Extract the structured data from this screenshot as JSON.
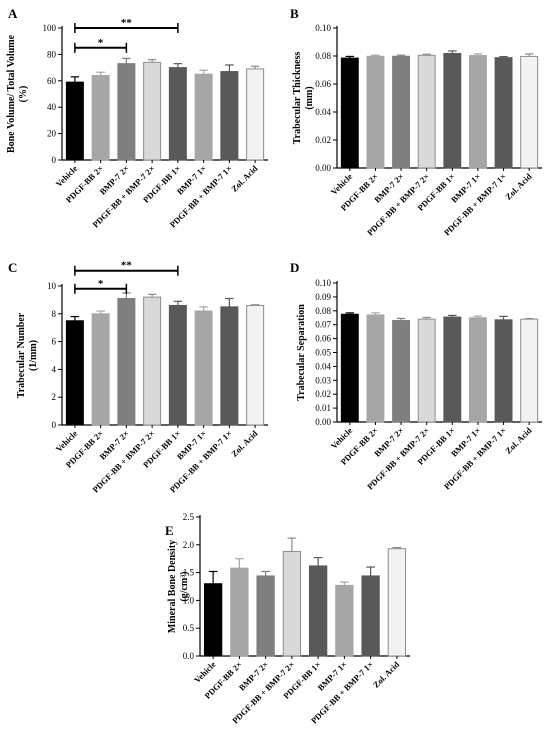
{
  "chart_data": [
    {
      "type": "bar",
      "panel": "A",
      "ylabel": "Bone Volume/ Total Volume (%)",
      "ylim": [
        0,
        100
      ],
      "yticks": [
        0,
        20,
        40,
        60,
        80,
        100
      ],
      "categories": [
        "Vehicle",
        "PDGF-BB 2×",
        "BMP-7 2×",
        "PDGF-BB + BMP-7 2×",
        "PDGF-BB 1×",
        "BMP-7 1×",
        "PDGF-BB + BMP-7 1×",
        "Zol. Acid"
      ],
      "values": [
        59,
        64,
        73,
        74,
        70,
        65,
        67,
        69
      ],
      "errors": [
        4,
        2.5,
        4,
        2,
        3,
        3,
        5,
        2
      ],
      "colors": [
        "#000000",
        "#a6a6a6",
        "#7f7f7f",
        "#d9d9d9",
        "#595959",
        "#a6a6a6",
        "#595959",
        "#f2f2f2"
      ],
      "significance": [
        {
          "from": 0,
          "to": 2,
          "label": "*",
          "y": 85
        },
        {
          "from": 0,
          "to": 4,
          "label": "**",
          "y": 100
        }
      ]
    },
    {
      "type": "bar",
      "panel": "B",
      "ylabel": "Trabecular Thickness (mm)",
      "ylim": [
        0,
        0.1
      ],
      "yticks": [
        "0.00",
        "0.02",
        "0.04",
        "0.06",
        "0.08",
        "0.10"
      ],
      "categories": [
        "Vehicle",
        "PDGF-BB 2×",
        "BMP-7 2×",
        "PDGF-BB + BMP-7 2×",
        "PDGF-BB 1×",
        "BMP-7 1×",
        "PDGF-BB + BMP-7 1×",
        "Zol. Acid"
      ],
      "values": [
        0.0785,
        0.0798,
        0.0798,
        0.0805,
        0.0818,
        0.0803,
        0.0788,
        0.0797
      ],
      "errors": [
        0.0012,
        0.0008,
        0.0008,
        0.0008,
        0.0018,
        0.0012,
        0.0008,
        0.0018
      ],
      "colors": [
        "#000000",
        "#a6a6a6",
        "#7f7f7f",
        "#d9d9d9",
        "#595959",
        "#a6a6a6",
        "#595959",
        "#f2f2f2"
      ],
      "significance": []
    },
    {
      "type": "bar",
      "panel": "C",
      "ylabel": "Trabecular Number (1/mm)",
      "ylim": [
        0,
        10
      ],
      "yticks": [
        0,
        2,
        4,
        6,
        8,
        10
      ],
      "categories": [
        "Vehicle",
        "PDGF-BB 2×",
        "BMP-7 2×",
        "PDGF-BB + BMP-7 2×",
        "PDGF-BB 1×",
        "BMP-7 1×",
        "PDGF-BB + BMP-7 1×",
        "Zol. Acid"
      ],
      "values": [
        7.5,
        8.0,
        9.1,
        9.2,
        8.6,
        8.2,
        8.5,
        8.6
      ],
      "errors": [
        0.3,
        0.2,
        0.4,
        0.2,
        0.3,
        0.3,
        0.6,
        0.05
      ],
      "colors": [
        "#000000",
        "#a6a6a6",
        "#7f7f7f",
        "#d9d9d9",
        "#595959",
        "#a6a6a6",
        "#595959",
        "#f2f2f2"
      ],
      "significance": [
        {
          "from": 0,
          "to": 2,
          "label": "*",
          "y": 9.8
        },
        {
          "from": 0,
          "to": 4,
          "label": "**",
          "y": 11.1
        }
      ]
    },
    {
      "type": "bar",
      "panel": "D",
      "ylabel": "Trabecular Separation",
      "ylim": [
        0,
        0.1
      ],
      "yticks": [
        "0.00",
        "0.01",
        "0.02",
        "0.03",
        "0.04",
        "0.05",
        "0.06",
        "0.07",
        "0.08",
        "0.09",
        "0.10"
      ],
      "categories": [
        "Vehicle",
        "PDGF-BB 2×",
        "BMP-7 2×",
        "PDGF-BB + BMP-7 2×",
        "PDGF-BB 1×",
        "BMP-7 1×",
        "PDGF-BB + BMP-7 1×",
        "Zol. Acid"
      ],
      "values": [
        0.0775,
        0.077,
        0.073,
        0.074,
        0.0755,
        0.075,
        0.0735,
        0.074
      ],
      "errors": [
        0.001,
        0.0015,
        0.0015,
        0.0012,
        0.0012,
        0.0012,
        0.0025,
        0.0004
      ],
      "colors": [
        "#000000",
        "#a6a6a6",
        "#7f7f7f",
        "#d9d9d9",
        "#595959",
        "#a6a6a6",
        "#595959",
        "#f2f2f2"
      ],
      "significance": []
    },
    {
      "type": "bar",
      "panel": "E",
      "ylabel": "Mineral Bone Density (g/cm³)",
      "ylim": [
        0,
        2.5
      ],
      "yticks": [
        "0.0",
        "0.5",
        "1.0",
        "1.5",
        "2.0",
        "2.5"
      ],
      "categories": [
        "Vehicle",
        "PDGF-BB 2×",
        "BMP-7 2×",
        "PDGF-BB + BMP-7 2×",
        "PDGF-BB 1×",
        "BMP-7 1×",
        "PDGF-BB + BMP-7 1×",
        "Zol. Acid"
      ],
      "values": [
        1.3,
        1.58,
        1.44,
        1.88,
        1.62,
        1.27,
        1.44,
        1.93
      ],
      "errors": [
        0.22,
        0.17,
        0.08,
        0.24,
        0.15,
        0.06,
        0.16,
        0.02
      ],
      "colors": [
        "#000000",
        "#a6a6a6",
        "#7f7f7f",
        "#d9d9d9",
        "#595959",
        "#a6a6a6",
        "#595959",
        "#f2f2f2"
      ],
      "significance": []
    }
  ]
}
